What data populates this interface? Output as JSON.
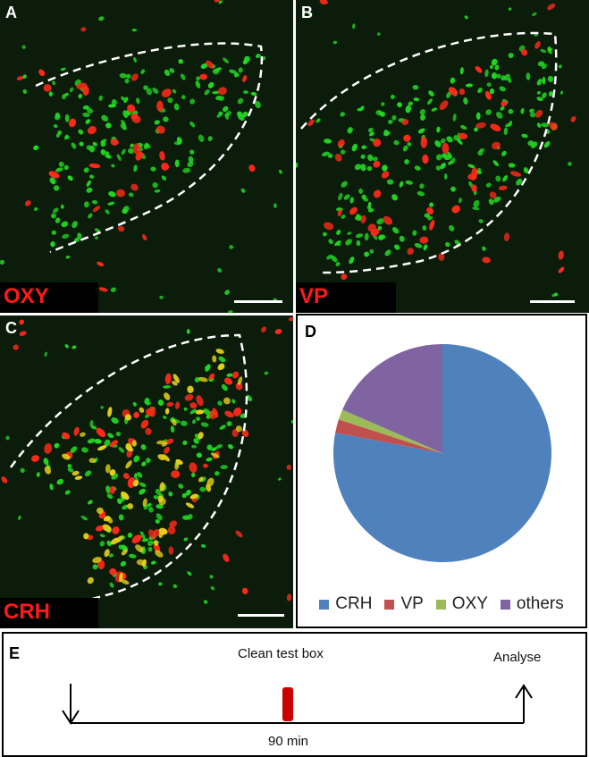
{
  "panels": {
    "a": {
      "letter": "A",
      "stain": "OXY"
    },
    "b": {
      "letter": "B",
      "stain": "VP"
    },
    "c": {
      "letter": "C",
      "stain": "CRH"
    },
    "d": {
      "letter": "D"
    },
    "e": {
      "letter": "E"
    }
  },
  "colors": {
    "green_cells": "#22d822",
    "red_cells": "#ff2a1a",
    "yellow_cells": "#e8d21a",
    "outline": "#ffffff"
  },
  "chart_data": {
    "type": "pie",
    "title": "",
    "legend_position": "bottom",
    "categories": [
      "CRH",
      "VP",
      "OXY",
      "others"
    ],
    "values": [
      78,
      2,
      1.5,
      18.5
    ],
    "colors": [
      "#4f81bd",
      "#c0504d",
      "#9bbb59",
      "#8064a2"
    ]
  },
  "timeline": {
    "event_label": "Clean test box",
    "end_label": "Analyse",
    "duration_label": "90 min",
    "marker_color": "#cc0000"
  }
}
